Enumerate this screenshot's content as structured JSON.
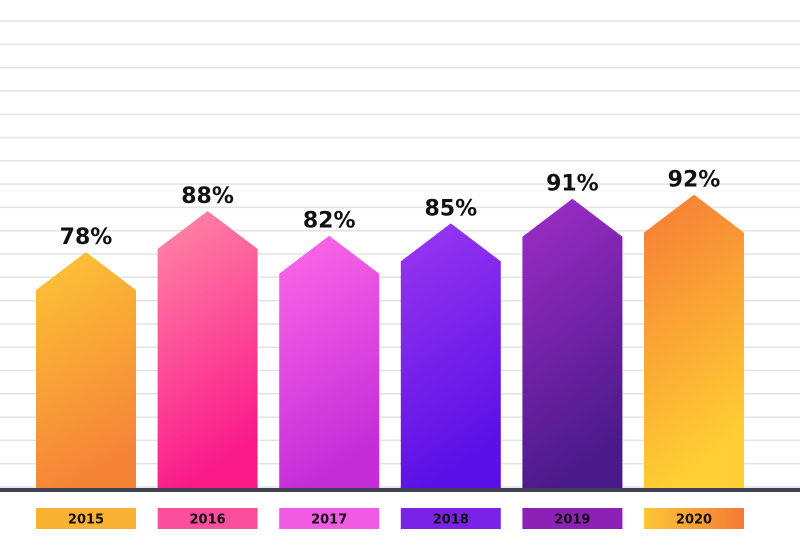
{
  "chart_data": {
    "type": "bar",
    "bar_shape": "arrow",
    "categories": [
      "2015",
      "2016",
      "2017",
      "2018",
      "2019",
      "2020"
    ],
    "values": [
      78,
      88,
      82,
      85,
      91,
      92
    ],
    "value_labels": [
      "78%",
      "88%",
      "82%",
      "85%",
      "91%",
      "92%"
    ],
    "unit": "%",
    "grid": true,
    "legend": "none",
    "bar_gradients": [
      [
        "#fcc636",
        "#f58437"
      ],
      [
        "#ff8aa6",
        "#fa1a8a"
      ],
      [
        "#ff6ae8",
        "#c42dd8"
      ],
      [
        "#9a38f0",
        "#5a10e6"
      ],
      [
        "#a02dc8",
        "#4b1a8a"
      ],
      [
        "#f57a36",
        "#ffcf33"
      ]
    ],
    "category_chip_colors": [
      [
        "#f9b233",
        "#f9b233"
      ],
      [
        "#fb4f9d",
        "#fb4f9d"
      ],
      [
        "#f15ae2",
        "#f15ae2"
      ],
      [
        "#7a22e6",
        "#7a22e6"
      ],
      [
        "#8b22b5",
        "#8b22b5"
      ],
      [
        "#fcc636",
        "#f57a36"
      ]
    ],
    "baseline_color": "#3f4350",
    "grid_color": "#e3e3e3"
  }
}
